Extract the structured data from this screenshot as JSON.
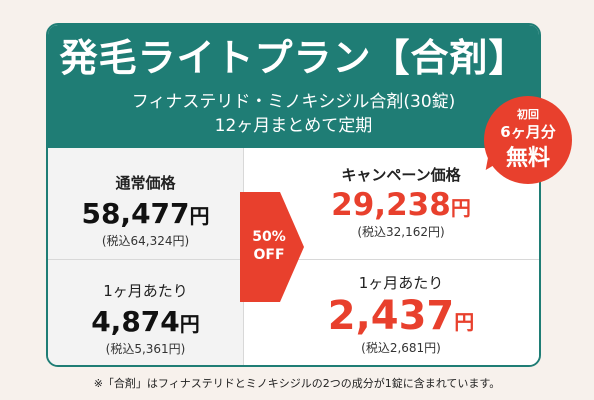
{
  "header": {
    "title": "発毛ライトプラン【合剤】",
    "subtitle1": "フィナステリド・ミノキシジル合剤(30錠)",
    "subtitle2": "12ヶ月まとめて定期"
  },
  "badge": {
    "line1": "初回",
    "line2": "6ヶ月分",
    "line3": "無料"
  },
  "regular": {
    "label": "通常価格",
    "price": "58,477",
    "yen": "円",
    "tax": "(税込64,324円)"
  },
  "regular_monthly": {
    "label": "1ヶ月あたり",
    "price": "4,874",
    "yen": "円",
    "tax": "(税込5,361円)"
  },
  "campaign": {
    "label": "キャンペーン価格",
    "price": "29,238",
    "yen": "円",
    "tax": "(税込32,162円)"
  },
  "campaign_monthly": {
    "label": "1ヶ月あたり",
    "price": "2,437",
    "yen": "円",
    "tax": "(税込2,681円)"
  },
  "discount": {
    "line1": "50%",
    "line2": "OFF"
  },
  "note": "※「合剤」はフィナステリドとミノキシジルの2つの成分が1錠に含まれています。",
  "colors": {
    "teal": "#1f7d75",
    "red": "#e8402d",
    "background": "#f7f1ec"
  }
}
